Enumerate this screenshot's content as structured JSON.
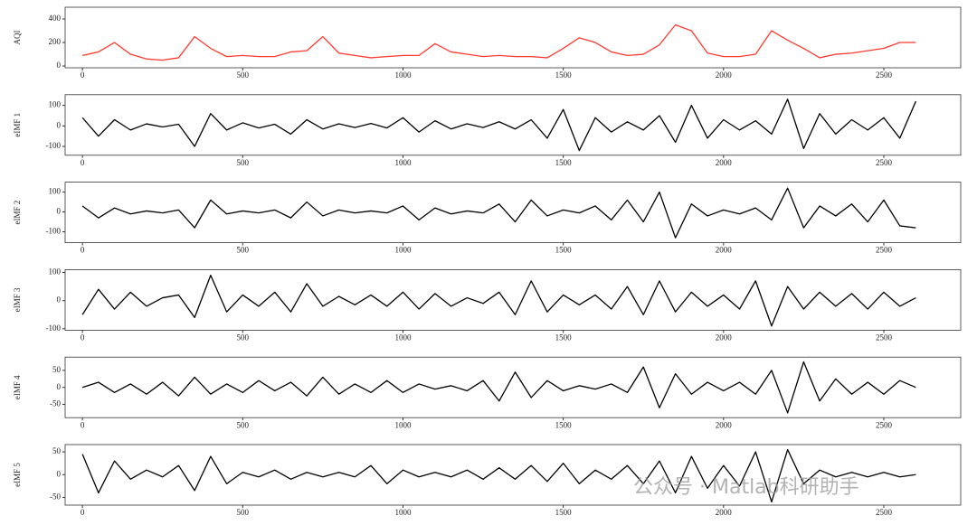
{
  "chart_data": [
    {
      "type": "line",
      "ylabel": "AQI",
      "color": "#ff3b30",
      "x": [
        0,
        50,
        100,
        150,
        200,
        250,
        300,
        350,
        400,
        450,
        500,
        550,
        600,
        650,
        700,
        750,
        800,
        850,
        900,
        950,
        1000,
        1050,
        1100,
        1150,
        1200,
        1250,
        1300,
        1350,
        1400,
        1450,
        1500,
        1550,
        1600,
        1650,
        1700,
        1750,
        1800,
        1850,
        1900,
        1950,
        2000,
        2050,
        2100,
        2150,
        2200,
        2250,
        2300,
        2350,
        2400,
        2450,
        2500,
        2550,
        2600
      ],
      "values": [
        90,
        120,
        200,
        100,
        60,
        50,
        70,
        250,
        150,
        80,
        90,
        80,
        80,
        120,
        130,
        250,
        110,
        90,
        70,
        80,
        90,
        90,
        190,
        120,
        100,
        80,
        90,
        80,
        80,
        70,
        150,
        240,
        200,
        120,
        90,
        100,
        180,
        350,
        300,
        110,
        80,
        80,
        100,
        300,
        220,
        150,
        70,
        100,
        110,
        130,
        150,
        200,
        200
      ],
      "xlim": [
        -54,
        2740
      ],
      "xticks": [
        0,
        500,
        1000,
        1500,
        2000,
        2500
      ],
      "ylim": [
        -15,
        500
      ],
      "yticks": [
        0,
        200,
        400
      ]
    },
    {
      "type": "line",
      "ylabel": "eIMF 1",
      "color": "#000000",
      "x": [
        0,
        50,
        100,
        150,
        200,
        250,
        300,
        350,
        400,
        450,
        500,
        550,
        600,
        650,
        700,
        750,
        800,
        850,
        900,
        950,
        1000,
        1050,
        1100,
        1150,
        1200,
        1250,
        1300,
        1350,
        1400,
        1450,
        1500,
        1550,
        1600,
        1650,
        1700,
        1750,
        1800,
        1850,
        1900,
        1950,
        2000,
        2050,
        2100,
        2150,
        2200,
        2250,
        2300,
        2350,
        2400,
        2450,
        2500,
        2550,
        2600
      ],
      "values": [
        40,
        -50,
        30,
        -20,
        10,
        -5,
        8,
        -100,
        60,
        -20,
        15,
        -10,
        8,
        -40,
        30,
        -15,
        10,
        -8,
        12,
        -10,
        40,
        -30,
        25,
        -15,
        10,
        -8,
        20,
        -15,
        30,
        -60,
        80,
        -120,
        40,
        -30,
        20,
        -20,
        50,
        -80,
        100,
        -60,
        30,
        -20,
        25,
        -40,
        130,
        -110,
        60,
        -40,
        30,
        -20,
        40,
        -60,
        120
      ],
      "xlim": [
        -54,
        2740
      ],
      "xticks": [
        0,
        500,
        1000,
        1500,
        2000,
        2500
      ],
      "ylim": [
        -143,
        152
      ],
      "yticks": [
        -100,
        0,
        100
      ]
    },
    {
      "type": "line",
      "ylabel": "eIMF 2",
      "color": "#000000",
      "x": [
        0,
        50,
        100,
        150,
        200,
        250,
        300,
        350,
        400,
        450,
        500,
        550,
        600,
        650,
        700,
        750,
        800,
        850,
        900,
        950,
        1000,
        1050,
        1100,
        1150,
        1200,
        1250,
        1300,
        1350,
        1400,
        1450,
        1500,
        1550,
        1600,
        1650,
        1700,
        1750,
        1800,
        1850,
        1900,
        1950,
        2000,
        2050,
        2100,
        2150,
        2200,
        2250,
        2300,
        2350,
        2400,
        2450,
        2500,
        2550,
        2600
      ],
      "values": [
        30,
        -30,
        20,
        -10,
        5,
        -5,
        10,
        -80,
        60,
        -10,
        5,
        -5,
        10,
        -30,
        50,
        -20,
        10,
        -5,
        5,
        -5,
        30,
        -40,
        20,
        -10,
        5,
        -5,
        40,
        -50,
        60,
        -20,
        10,
        -5,
        30,
        -40,
        60,
        -50,
        100,
        -130,
        40,
        -20,
        10,
        -10,
        20,
        -40,
        120,
        -80,
        30,
        -20,
        40,
        -50,
        60,
        -70,
        -80
      ],
      "xlim": [
        -54,
        2740
      ],
      "xticks": [
        0,
        500,
        1000,
        1500,
        2000,
        2500
      ],
      "ylim": [
        -155,
        150
      ],
      "yticks": [
        -100,
        0,
        100
      ]
    },
    {
      "type": "line",
      "ylabel": "eIMF 3",
      "color": "#000000",
      "x": [
        0,
        50,
        100,
        150,
        200,
        250,
        300,
        350,
        400,
        450,
        500,
        550,
        600,
        650,
        700,
        750,
        800,
        850,
        900,
        950,
        1000,
        1050,
        1100,
        1150,
        1200,
        1250,
        1300,
        1350,
        1400,
        1450,
        1500,
        1550,
        1600,
        1650,
        1700,
        1750,
        1800,
        1850,
        1900,
        1950,
        2000,
        2050,
        2100,
        2150,
        2200,
        2250,
        2300,
        2350,
        2400,
        2450,
        2500,
        2550,
        2600
      ],
      "values": [
        -50,
        40,
        -30,
        30,
        -20,
        10,
        20,
        -60,
        90,
        -40,
        20,
        -20,
        30,
        -40,
        60,
        -20,
        15,
        -15,
        20,
        -20,
        30,
        -30,
        25,
        -20,
        10,
        -10,
        30,
        -50,
        70,
        -40,
        20,
        -15,
        20,
        -30,
        50,
        -50,
        70,
        -40,
        30,
        -20,
        20,
        -30,
        70,
        -90,
        50,
        -30,
        30,
        -20,
        25,
        -30,
        30,
        -20,
        10
      ],
      "xlim": [
        -54,
        2740
      ],
      "xticks": [
        0,
        500,
        1000,
        1500,
        2000,
        2500
      ],
      "ylim": [
        -105,
        110
      ],
      "yticks": [
        -100,
        0,
        100
      ]
    },
    {
      "type": "line",
      "ylabel": "eIMF 4",
      "color": "#000000",
      "x": [
        0,
        50,
        100,
        150,
        200,
        250,
        300,
        350,
        400,
        450,
        500,
        550,
        600,
        650,
        700,
        750,
        800,
        850,
        900,
        950,
        1000,
        1050,
        1100,
        1150,
        1200,
        1250,
        1300,
        1350,
        1400,
        1450,
        1500,
        1550,
        1600,
        1650,
        1700,
        1750,
        1800,
        1850,
        1900,
        1950,
        2000,
        2050,
        2100,
        2150,
        2200,
        2250,
        2300,
        2350,
        2400,
        2450,
        2500,
        2550,
        2600
      ],
      "values": [
        0,
        15,
        -15,
        10,
        -20,
        15,
        -25,
        30,
        -20,
        10,
        -15,
        20,
        -10,
        15,
        -25,
        30,
        -20,
        10,
        -15,
        20,
        -15,
        10,
        -5,
        5,
        -10,
        20,
        -40,
        45,
        -30,
        20,
        -10,
        5,
        -5,
        10,
        -15,
        60,
        -60,
        40,
        -20,
        15,
        -10,
        15,
        -20,
        50,
        -75,
        75,
        -40,
        25,
        -20,
        15,
        -20,
        20,
        0
      ],
      "xlim": [
        -54,
        2740
      ],
      "xticks": [
        0,
        500,
        1000,
        1500,
        2000,
        2500
      ],
      "ylim": [
        -89,
        89
      ],
      "yticks": [
        -50,
        0,
        50
      ]
    },
    {
      "type": "line",
      "ylabel": "eIMF 5",
      "color": "#000000",
      "x": [
        0,
        50,
        100,
        150,
        200,
        250,
        300,
        350,
        400,
        450,
        500,
        550,
        600,
        650,
        700,
        750,
        800,
        850,
        900,
        950,
        1000,
        1050,
        1100,
        1150,
        1200,
        1250,
        1300,
        1350,
        1400,
        1450,
        1500,
        1550,
        1600,
        1650,
        1700,
        1750,
        1800,
        1850,
        1900,
        1950,
        2000,
        2050,
        2100,
        2150,
        2200,
        2250,
        2300,
        2350,
        2400,
        2450,
        2500,
        2550,
        2600
      ],
      "values": [
        45,
        -40,
        30,
        -10,
        10,
        -5,
        20,
        -35,
        40,
        -20,
        5,
        -5,
        10,
        -10,
        5,
        -5,
        5,
        -5,
        20,
        -20,
        10,
        -5,
        5,
        -5,
        10,
        -10,
        15,
        -10,
        20,
        -15,
        25,
        -20,
        10,
        -10,
        20,
        -20,
        30,
        -40,
        40,
        -30,
        20,
        -25,
        50,
        -60,
        55,
        -20,
        10,
        -5,
        5,
        -5,
        5,
        -5,
        0
      ],
      "xlim": [
        -54,
        2740
      ],
      "xticks": [
        0,
        500,
        1000,
        1500,
        2000,
        2500
      ],
      "ylim": [
        -67,
        66
      ],
      "yticks": [
        -50,
        0,
        50
      ]
    }
  ],
  "watermark": "公众号 · Matlab科研助手"
}
